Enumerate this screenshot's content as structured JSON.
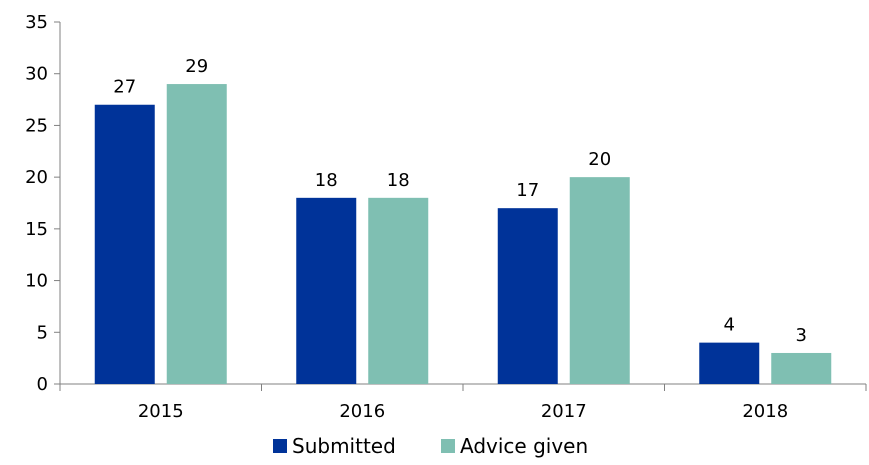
{
  "chart_data": {
    "type": "bar",
    "title": "",
    "xlabel": "",
    "ylabel": "",
    "categories": [
      "2015",
      "2016",
      "2017",
      "2018"
    ],
    "series": [
      {
        "name": "Submitted",
        "values": [
          27,
          18,
          17,
          4
        ],
        "color": "#003399"
      },
      {
        "name": "Advice given",
        "values": [
          29,
          18,
          20,
          3
        ],
        "color": "#7fbfb2"
      }
    ],
    "ylim": [
      0,
      35
    ],
    "yticks": [
      "0",
      "5",
      "10",
      "15",
      "20",
      "25",
      "30",
      "35"
    ],
    "grid": false,
    "legend_position": "bottom-center"
  }
}
